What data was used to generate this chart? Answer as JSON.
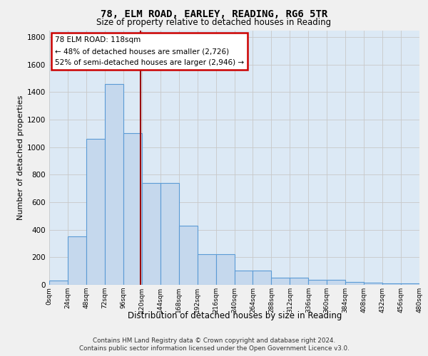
{
  "title": "78, ELM ROAD, EARLEY, READING, RG6 5TR",
  "subtitle": "Size of property relative to detached houses in Reading",
  "xlabel": "Distribution of detached houses by size in Reading",
  "ylabel": "Number of detached properties",
  "footer_line1": "Contains HM Land Registry data © Crown copyright and database right 2024.",
  "footer_line2": "Contains public sector information licensed under the Open Government Licence v3.0.",
  "annotation_title": "78 ELM ROAD: 118sqm",
  "annotation_line2": "← 48% of detached houses are smaller (2,726)",
  "annotation_line3": "52% of semi-detached houses are larger (2,946) →",
  "vline_x": 118,
  "bin_edges": [
    0,
    24,
    48,
    72,
    96,
    120,
    144,
    168,
    192,
    216,
    240,
    264,
    288,
    312,
    336,
    360,
    384,
    408,
    432,
    456,
    480
  ],
  "bar_heights": [
    30,
    350,
    1060,
    1460,
    1100,
    740,
    740,
    430,
    225,
    225,
    105,
    105,
    50,
    50,
    35,
    35,
    20,
    15,
    10,
    8
  ],
  "bar_color": "#c5d8ed",
  "bar_edge_color": "#5b9bd5",
  "vline_color": "#990000",
  "annotation_box_bg": "#ffffff",
  "annotation_box_edge": "#cc0000",
  "ylim": [
    0,
    1850
  ],
  "yticks": [
    0,
    200,
    400,
    600,
    800,
    1000,
    1200,
    1400,
    1600,
    1800
  ],
  "grid_color": "#c8c8c8",
  "plot_bg_color": "#dce9f5",
  "fig_bg_color": "#f0f0f0"
}
